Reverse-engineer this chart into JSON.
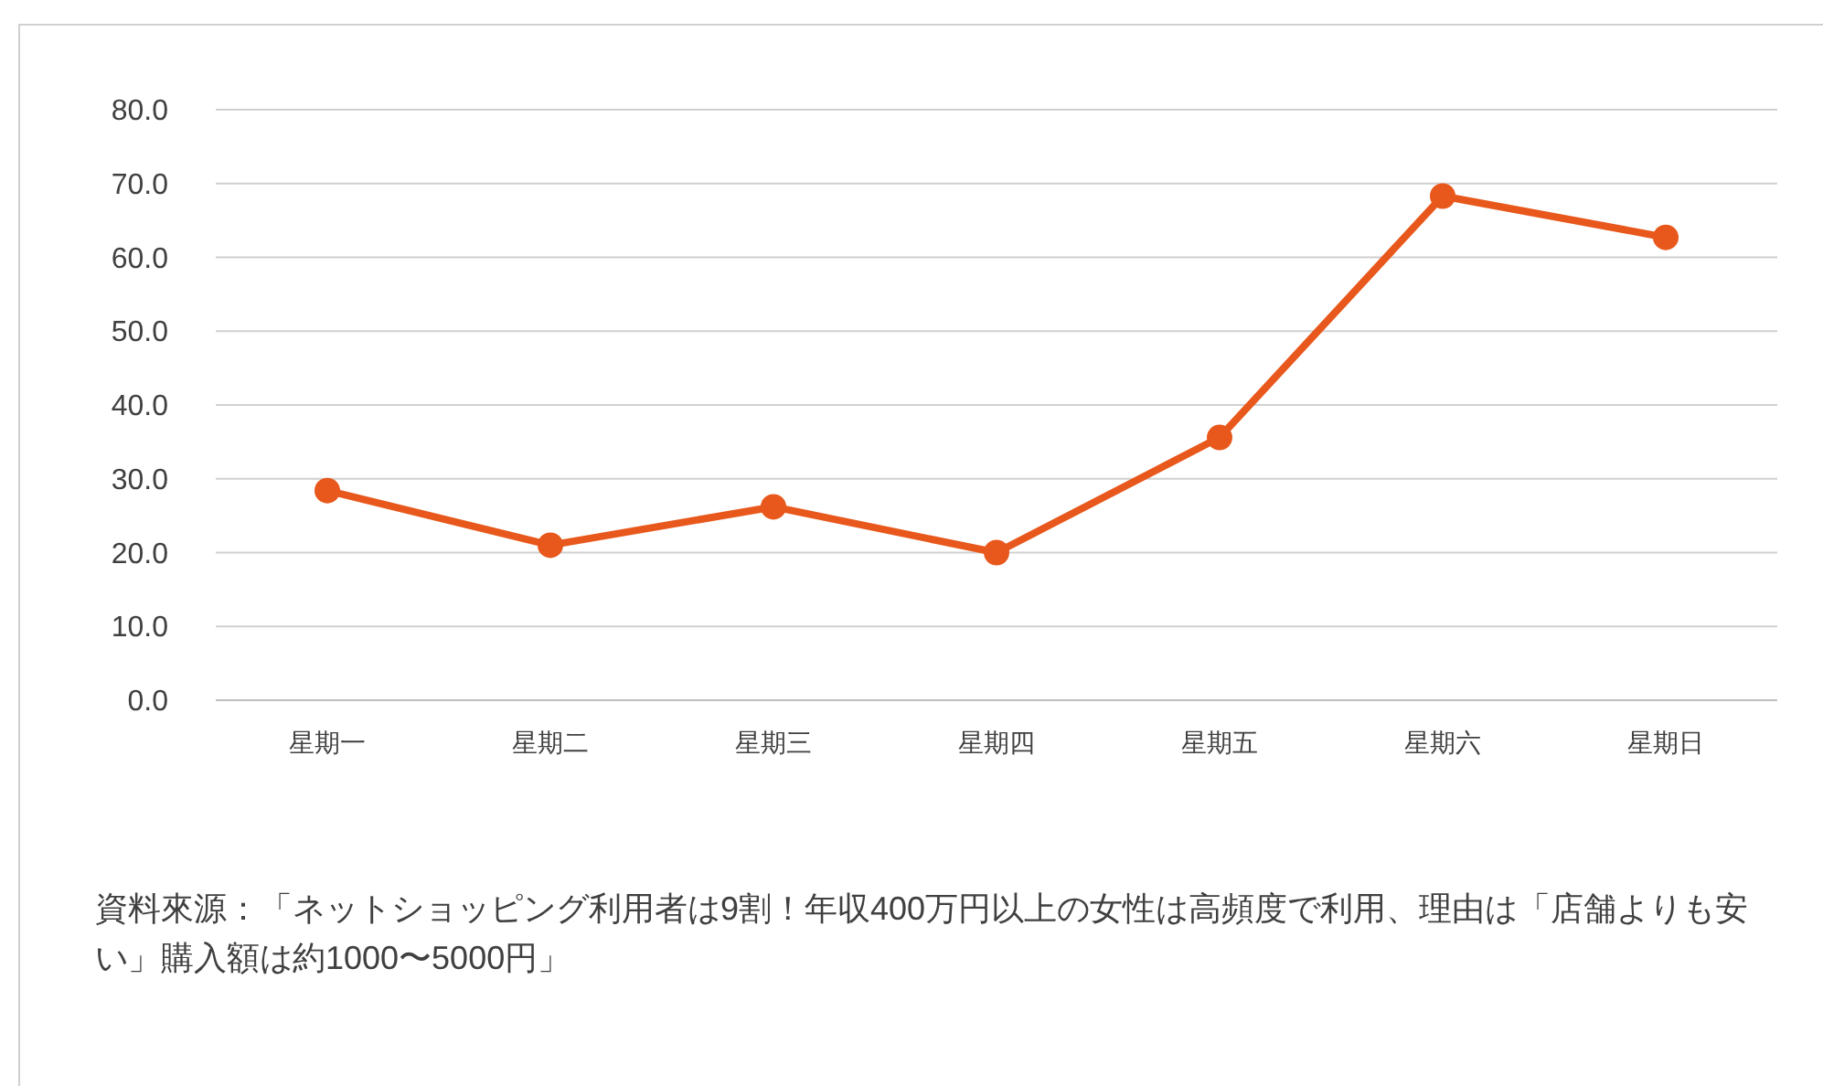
{
  "chart_data": {
    "type": "line",
    "categories": [
      "星期一",
      "星期二",
      "星期三",
      "星期四",
      "星期五",
      "星期六",
      "星期日"
    ],
    "series": [
      {
        "color": "#e8581c",
        "values": [
          28.4,
          21.0,
          26.2,
          20.0,
          35.6,
          68.3,
          62.7
        ]
      }
    ],
    "ylim": [
      0,
      80
    ],
    "yticks": [
      {
        "value": 0,
        "label": "0.0"
      },
      {
        "value": 10,
        "label": "10.0"
      },
      {
        "value": 20,
        "label": "20.0"
      },
      {
        "value": 30,
        "label": "30.0"
      },
      {
        "value": 40,
        "label": "40.0"
      },
      {
        "value": 50,
        "label": "50.0"
      },
      {
        "value": 60,
        "label": "60.0"
      },
      {
        "value": 70,
        "label": "70.0"
      },
      {
        "value": 80,
        "label": "80.0"
      }
    ],
    "grid": "y",
    "marker": "circle",
    "line_style": "solid",
    "annotations": [
      "資料來源：「ネットショッピング利用者は9割！年収400万円以上の女性は高頻度で利用、理由は「店舗よりも安い」購入額は約1000〜5000円」"
    ]
  }
}
